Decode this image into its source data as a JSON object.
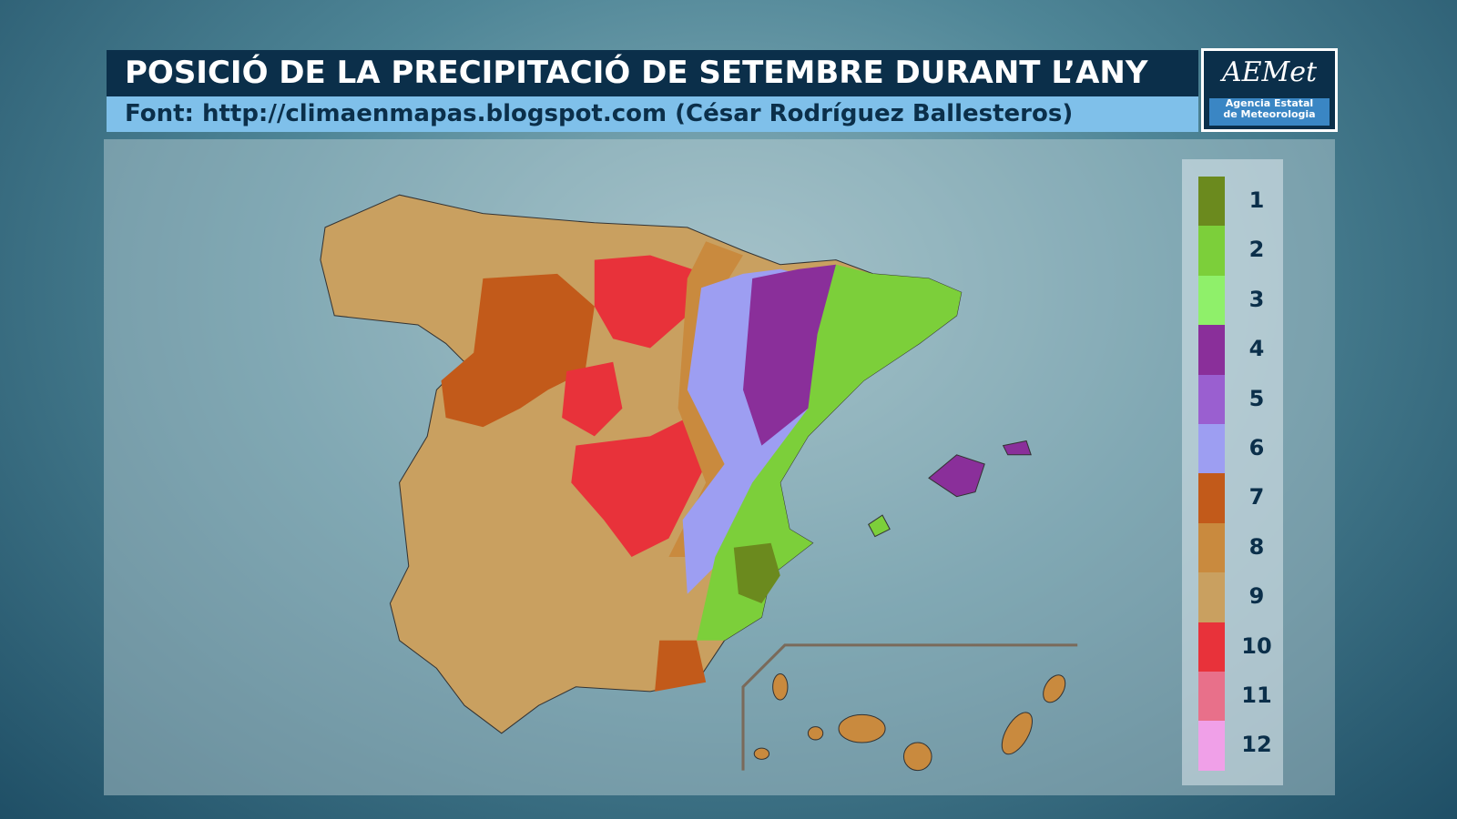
{
  "header": {
    "title": "POSICIÓ DE LA PRECIPITACIÓ DE SETEMBRE DURANT L’ANY",
    "source": "Font: http://climaenmapas.blogspot.com (César Rodríguez Ballesteros)"
  },
  "logo": {
    "name": "AEMet",
    "line1": "Agencia Estatal",
    "line2": "de Meteorologia"
  },
  "legend": {
    "items": [
      {
        "label": 1,
        "color": "#6b8a1e"
      },
      {
        "label": 2,
        "color": "#7ccf3a"
      },
      {
        "label": 3,
        "color": "#8ff06a"
      },
      {
        "label": 4,
        "color": "#8a2f9a"
      },
      {
        "label": 5,
        "color": "#9a5fd0"
      },
      {
        "label": 6,
        "color": "#9d9ef2"
      },
      {
        "label": 7,
        "color": "#c25a1a"
      },
      {
        "label": 8,
        "color": "#c98a3e"
      },
      {
        "label": 9,
        "color": "#c9a060"
      },
      {
        "label": 10,
        "color": "#e8323a"
      },
      {
        "label": 11,
        "color": "#e8708a"
      },
      {
        "label": 12,
        "color": "#f0a0e8"
      }
    ]
  }
}
